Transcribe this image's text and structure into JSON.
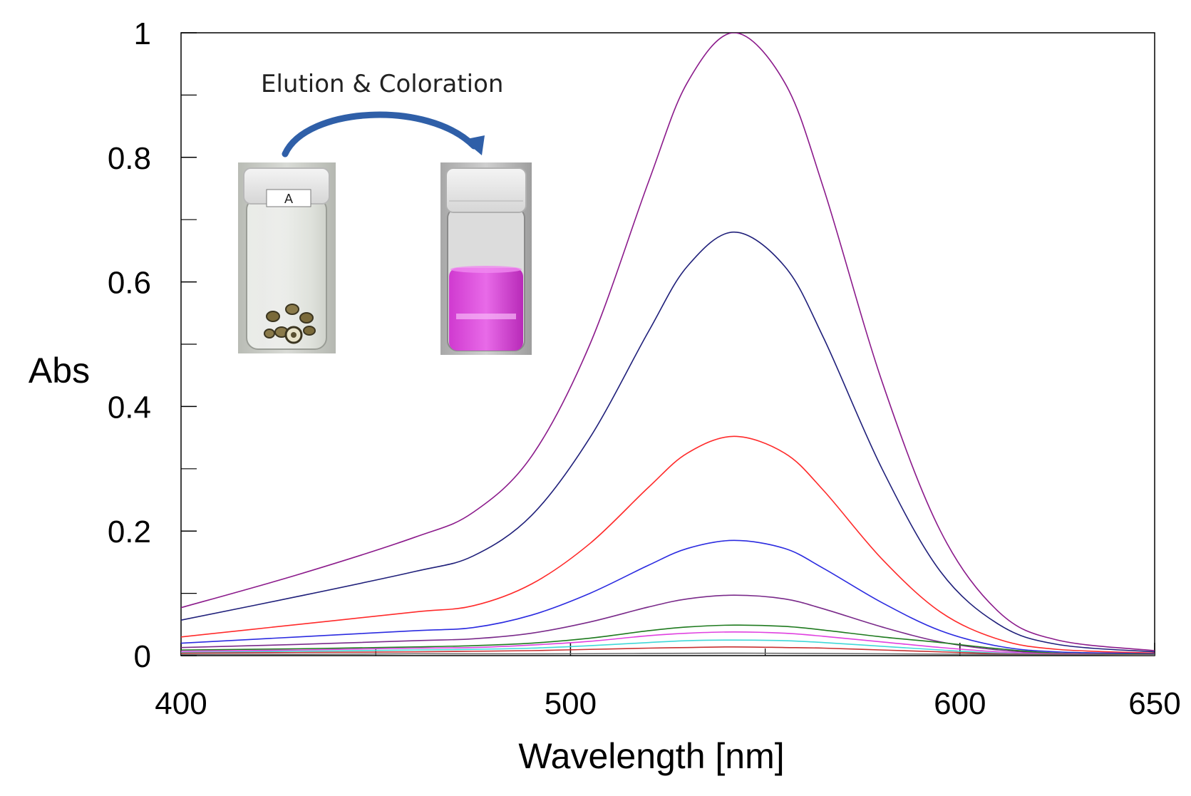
{
  "chart_data": {
    "type": "line",
    "title": "",
    "xlabel": "Wavelength [nm]",
    "ylabel": "Abs",
    "xlim": [
      400,
      650
    ],
    "ylim": [
      0,
      1
    ],
    "x_ticks": [
      400,
      500,
      600,
      650
    ],
    "x_tick_labels": [
      "400",
      "500",
      "600",
      "650"
    ],
    "y_ticks": [
      0,
      0.2,
      0.4,
      0.6,
      0.8,
      1
    ],
    "y_tick_labels": [
      "0",
      "0.2",
      "0.4",
      "0.6",
      "0.8",
      "1"
    ],
    "grid": false,
    "legend": "none",
    "peak_wavelength": 542,
    "series": [
      {
        "color": "#8B1A8B",
        "values": [
          {
            "x": 400,
            "y": 0.077
          },
          {
            "x": 430,
            "y": 0.13
          },
          {
            "x": 460,
            "y": 0.19
          },
          {
            "x": 475,
            "y": 0.23
          },
          {
            "x": 490,
            "y": 0.32
          },
          {
            "x": 505,
            "y": 0.5
          },
          {
            "x": 520,
            "y": 0.76
          },
          {
            "x": 530,
            "y": 0.92
          },
          {
            "x": 542,
            "y": 1.0
          },
          {
            "x": 555,
            "y": 0.92
          },
          {
            "x": 565,
            "y": 0.75
          },
          {
            "x": 580,
            "y": 0.44
          },
          {
            "x": 595,
            "y": 0.2
          },
          {
            "x": 610,
            "y": 0.07
          },
          {
            "x": 625,
            "y": 0.025
          },
          {
            "x": 650,
            "y": 0.008
          }
        ]
      },
      {
        "color": "#1F1F7A",
        "values": [
          {
            "x": 400,
            "y": 0.057
          },
          {
            "x": 430,
            "y": 0.095
          },
          {
            "x": 460,
            "y": 0.135
          },
          {
            "x": 475,
            "y": 0.16
          },
          {
            "x": 490,
            "y": 0.225
          },
          {
            "x": 505,
            "y": 0.35
          },
          {
            "x": 520,
            "y": 0.52
          },
          {
            "x": 530,
            "y": 0.625
          },
          {
            "x": 542,
            "y": 0.68
          },
          {
            "x": 555,
            "y": 0.625
          },
          {
            "x": 565,
            "y": 0.51
          },
          {
            "x": 580,
            "y": 0.3
          },
          {
            "x": 595,
            "y": 0.135
          },
          {
            "x": 610,
            "y": 0.05
          },
          {
            "x": 625,
            "y": 0.018
          },
          {
            "x": 650,
            "y": 0.006
          }
        ]
      },
      {
        "color": "#FF2A2A",
        "values": [
          {
            "x": 400,
            "y": 0.03
          },
          {
            "x": 430,
            "y": 0.05
          },
          {
            "x": 460,
            "y": 0.07
          },
          {
            "x": 475,
            "y": 0.08
          },
          {
            "x": 490,
            "y": 0.115
          },
          {
            "x": 505,
            "y": 0.18
          },
          {
            "x": 520,
            "y": 0.27
          },
          {
            "x": 530,
            "y": 0.325
          },
          {
            "x": 542,
            "y": 0.352
          },
          {
            "x": 555,
            "y": 0.325
          },
          {
            "x": 565,
            "y": 0.265
          },
          {
            "x": 580,
            "y": 0.155
          },
          {
            "x": 595,
            "y": 0.07
          },
          {
            "x": 610,
            "y": 0.026
          },
          {
            "x": 625,
            "y": 0.01
          },
          {
            "x": 650,
            "y": 0.004
          }
        ]
      },
      {
        "color": "#2B2BE0",
        "values": [
          {
            "x": 400,
            "y": 0.02
          },
          {
            "x": 430,
            "y": 0.03
          },
          {
            "x": 460,
            "y": 0.04
          },
          {
            "x": 475,
            "y": 0.045
          },
          {
            "x": 490,
            "y": 0.065
          },
          {
            "x": 505,
            "y": 0.1
          },
          {
            "x": 520,
            "y": 0.145
          },
          {
            "x": 530,
            "y": 0.172
          },
          {
            "x": 542,
            "y": 0.185
          },
          {
            "x": 555,
            "y": 0.172
          },
          {
            "x": 565,
            "y": 0.14
          },
          {
            "x": 580,
            "y": 0.085
          },
          {
            "x": 595,
            "y": 0.04
          },
          {
            "x": 610,
            "y": 0.015
          },
          {
            "x": 625,
            "y": 0.006
          },
          {
            "x": 650,
            "y": 0.003
          }
        ]
      },
      {
        "color": "#7A2A8A",
        "values": [
          {
            "x": 400,
            "y": 0.013
          },
          {
            "x": 430,
            "y": 0.018
          },
          {
            "x": 460,
            "y": 0.024
          },
          {
            "x": 475,
            "y": 0.027
          },
          {
            "x": 490,
            "y": 0.036
          },
          {
            "x": 505,
            "y": 0.054
          },
          {
            "x": 520,
            "y": 0.078
          },
          {
            "x": 530,
            "y": 0.091
          },
          {
            "x": 542,
            "y": 0.097
          },
          {
            "x": 555,
            "y": 0.091
          },
          {
            "x": 565,
            "y": 0.075
          },
          {
            "x": 580,
            "y": 0.046
          },
          {
            "x": 595,
            "y": 0.022
          },
          {
            "x": 610,
            "y": 0.009
          },
          {
            "x": 625,
            "y": 0.004
          },
          {
            "x": 650,
            "y": 0.002
          }
        ]
      },
      {
        "color": "#1E7A1E",
        "values": [
          {
            "x": 400,
            "y": 0.009
          },
          {
            "x": 430,
            "y": 0.011
          },
          {
            "x": 460,
            "y": 0.014
          },
          {
            "x": 475,
            "y": 0.016
          },
          {
            "x": 490,
            "y": 0.02
          },
          {
            "x": 505,
            "y": 0.028
          },
          {
            "x": 520,
            "y": 0.04
          },
          {
            "x": 530,
            "y": 0.046
          },
          {
            "x": 542,
            "y": 0.049
          },
          {
            "x": 555,
            "y": 0.047
          },
          {
            "x": 565,
            "y": 0.041
          },
          {
            "x": 580,
            "y": 0.03
          },
          {
            "x": 595,
            "y": 0.021
          },
          {
            "x": 610,
            "y": 0.011
          },
          {
            "x": 625,
            "y": 0.004
          },
          {
            "x": 650,
            "y": 0.002
          }
        ]
      },
      {
        "color": "#E040E0",
        "values": [
          {
            "x": 400,
            "y": 0.007
          },
          {
            "x": 430,
            "y": 0.009
          },
          {
            "x": 460,
            "y": 0.012
          },
          {
            "x": 475,
            "y": 0.013
          },
          {
            "x": 490,
            "y": 0.017
          },
          {
            "x": 505,
            "y": 0.023
          },
          {
            "x": 520,
            "y": 0.032
          },
          {
            "x": 530,
            "y": 0.036
          },
          {
            "x": 542,
            "y": 0.038
          },
          {
            "x": 555,
            "y": 0.036
          },
          {
            "x": 565,
            "y": 0.031
          },
          {
            "x": 580,
            "y": 0.022
          },
          {
            "x": 595,
            "y": 0.013
          },
          {
            "x": 610,
            "y": 0.006
          },
          {
            "x": 625,
            "y": 0.003
          },
          {
            "x": 650,
            "y": 0.001
          }
        ]
      },
      {
        "color": "#40D8D8",
        "values": [
          {
            "x": 400,
            "y": 0.005
          },
          {
            "x": 430,
            "y": 0.007
          },
          {
            "x": 460,
            "y": 0.009
          },
          {
            "x": 475,
            "y": 0.01
          },
          {
            "x": 490,
            "y": 0.012
          },
          {
            "x": 505,
            "y": 0.016
          },
          {
            "x": 520,
            "y": 0.021
          },
          {
            "x": 530,
            "y": 0.024
          },
          {
            "x": 542,
            "y": 0.025
          },
          {
            "x": 555,
            "y": 0.024
          },
          {
            "x": 565,
            "y": 0.021
          },
          {
            "x": 580,
            "y": 0.015
          },
          {
            "x": 595,
            "y": 0.009
          },
          {
            "x": 610,
            "y": 0.004
          },
          {
            "x": 625,
            "y": 0.002
          },
          {
            "x": 650,
            "y": 0.001
          }
        ]
      },
      {
        "color": "#C83030",
        "values": [
          {
            "x": 400,
            "y": 0.004
          },
          {
            "x": 430,
            "y": 0.005
          },
          {
            "x": 460,
            "y": 0.006
          },
          {
            "x": 475,
            "y": 0.007
          },
          {
            "x": 490,
            "y": 0.008
          },
          {
            "x": 505,
            "y": 0.01
          },
          {
            "x": 520,
            "y": 0.012
          },
          {
            "x": 530,
            "y": 0.013
          },
          {
            "x": 542,
            "y": 0.014
          },
          {
            "x": 555,
            "y": 0.013
          },
          {
            "x": 565,
            "y": 0.012
          },
          {
            "x": 580,
            "y": 0.009
          },
          {
            "x": 595,
            "y": 0.006
          },
          {
            "x": 610,
            "y": 0.003
          },
          {
            "x": 625,
            "y": 0.002
          },
          {
            "x": 650,
            "y": 0.001
          }
        ]
      },
      {
        "color": "#6A6A6A",
        "values": [
          {
            "x": 400,
            "y": 0.002
          },
          {
            "x": 430,
            "y": 0.002
          },
          {
            "x": 460,
            "y": 0.003
          },
          {
            "x": 500,
            "y": 0.003
          },
          {
            "x": 542,
            "y": 0.004
          },
          {
            "x": 580,
            "y": 0.003
          },
          {
            "x": 610,
            "y": 0.002
          },
          {
            "x": 650,
            "y": 0.001
          }
        ]
      }
    ],
    "annotations": {
      "text": "Elution & Coloration",
      "vial_label": "A"
    }
  }
}
